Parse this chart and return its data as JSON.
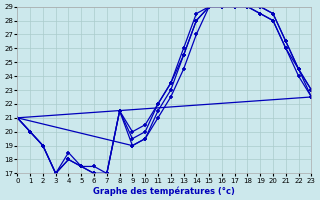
{
  "title": "Graphe des températures (°c)",
  "background_color": "#cce8ec",
  "line_color": "#0000bb",
  "grid_color": "#aacccc",
  "ylim": [
    17,
    29
  ],
  "xlim": [
    0,
    23
  ],
  "yticks": [
    17,
    18,
    19,
    20,
    21,
    22,
    23,
    24,
    25,
    26,
    27,
    28,
    29
  ],
  "xticks": [
    0,
    1,
    2,
    3,
    4,
    5,
    6,
    7,
    8,
    9,
    10,
    11,
    12,
    13,
    14,
    15,
    16,
    17,
    18,
    19,
    20,
    21,
    22,
    23
  ],
  "line1_x": [
    0,
    1,
    2,
    3,
    4,
    5,
    6,
    7,
    8,
    9,
    10,
    11,
    12,
    13,
    14,
    15,
    16,
    17,
    18,
    19,
    20,
    21,
    22,
    23
  ],
  "line1_y": [
    21.0,
    20.0,
    19.0,
    17.0,
    18.0,
    17.5,
    17.0,
    17.0,
    21.5,
    19.5,
    20.0,
    22.0,
    23.5,
    25.5,
    28.0,
    29.0,
    29.0,
    29.0,
    29.0,
    28.5,
    28.0,
    26.0,
    24.0,
    22.5
  ],
  "line2_x": [
    0,
    1,
    2,
    3,
    4,
    5,
    6,
    7,
    8,
    9,
    10,
    11,
    12,
    13,
    14,
    15,
    16,
    17,
    18,
    19,
    20,
    21,
    22,
    23
  ],
  "line2_y": [
    21.0,
    20.0,
    19.0,
    17.0,
    18.0,
    17.5,
    17.0,
    17.0,
    21.5,
    19.0,
    19.5,
    21.5,
    23.0,
    25.5,
    28.0,
    29.0,
    29.0,
    29.0,
    29.0,
    29.0,
    28.5,
    26.5,
    24.5,
    23.0
  ],
  "line3_x": [
    0,
    1,
    2,
    3,
    4,
    5,
    6,
    7,
    8,
    9,
    10,
    11,
    12,
    13,
    14,
    15,
    16,
    17,
    18,
    19,
    20,
    21,
    22,
    23
  ],
  "line3_y": [
    21.0,
    20.0,
    19.0,
    17.0,
    18.5,
    17.5,
    17.5,
    17.0,
    21.5,
    20.0,
    20.5,
    22.0,
    23.5,
    26.0,
    28.5,
    29.0,
    29.0,
    29.0,
    29.0,
    29.0,
    28.5,
    26.5,
    24.5,
    23.0
  ],
  "line4_x": [
    0,
    23
  ],
  "line4_y": [
    21.0,
    22.5
  ],
  "line5_x": [
    0,
    9,
    10,
    11,
    12,
    13,
    14,
    15,
    16,
    17,
    18,
    19,
    20,
    21,
    22,
    23
  ],
  "line5_y": [
    21.0,
    19.0,
    19.5,
    21.0,
    22.5,
    24.5,
    27.0,
    29.0,
    29.0,
    29.0,
    29.0,
    28.5,
    28.0,
    26.0,
    24.5,
    22.5
  ]
}
